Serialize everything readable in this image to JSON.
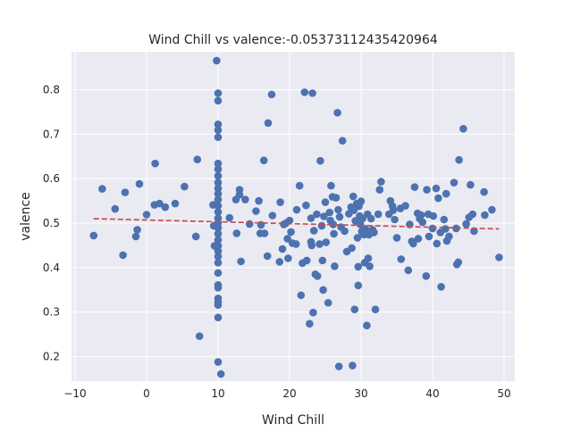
{
  "chart_data": {
    "type": "scatter",
    "title": "Wind Chill vs valence:-0.05373112435420964",
    "xlabel": "Wind Chill",
    "ylabel": "valence",
    "xlim": [
      -10.5,
      51.5
    ],
    "ylim": [
      0.145,
      0.885
    ],
    "xticks": [
      -10,
      0,
      10,
      20,
      30,
      40,
      50
    ],
    "xtick_labels": [
      "−10",
      "0",
      "10",
      "20",
      "30",
      "40",
      "50"
    ],
    "yticks": [
      0.2,
      0.3,
      0.4,
      0.5,
      0.6,
      0.7,
      0.8
    ],
    "ytick_labels": [
      "0.2",
      "0.3",
      "0.4",
      "0.5",
      "0.6",
      "0.7",
      "0.8"
    ],
    "grid": true,
    "series": [
      {
        "kind": "points",
        "color": "#4c72b0",
        "points": [
          [
            -7.4,
            0.472
          ],
          [
            -6.2,
            0.577
          ],
          [
            -4.4,
            0.532
          ],
          [
            -3.3,
            0.428
          ],
          [
            -3.0,
            0.569
          ],
          [
            -1.5,
            0.47
          ],
          [
            -1.3,
            0.485
          ],
          [
            -1.0,
            0.588
          ],
          [
            0.0,
            0.519
          ],
          [
            1.1,
            0.541
          ],
          [
            1.2,
            0.634
          ],
          [
            1.8,
            0.544
          ],
          [
            2.6,
            0.536
          ],
          [
            4.0,
            0.544
          ],
          [
            5.3,
            0.582
          ],
          [
            6.9,
            0.47
          ],
          [
            7.1,
            0.643
          ],
          [
            7.4,
            0.246
          ],
          [
            9.3,
            0.541
          ],
          [
            9.4,
            0.494
          ],
          [
            9.5,
            0.449
          ],
          [
            9.8,
            0.865
          ],
          [
            10.0,
            0.792
          ],
          [
            10.0,
            0.775
          ],
          [
            10.0,
            0.722
          ],
          [
            10.0,
            0.709
          ],
          [
            10.0,
            0.693
          ],
          [
            10.0,
            0.634
          ],
          [
            10.0,
            0.621
          ],
          [
            10.0,
            0.606
          ],
          [
            10.0,
            0.591
          ],
          [
            10.0,
            0.578
          ],
          [
            10.0,
            0.566
          ],
          [
            10.0,
            0.553
          ],
          [
            10.0,
            0.539
          ],
          [
            10.0,
            0.525
          ],
          [
            10.0,
            0.511
          ],
          [
            10.0,
            0.5
          ],
          [
            10.0,
            0.489
          ],
          [
            10.0,
            0.476
          ],
          [
            10.0,
            0.462
          ],
          [
            10.0,
            0.449
          ],
          [
            10.0,
            0.437
          ],
          [
            10.0,
            0.425
          ],
          [
            10.0,
            0.411
          ],
          [
            10.0,
            0.388
          ],
          [
            10.0,
            0.361
          ],
          [
            10.0,
            0.355
          ],
          [
            10.0,
            0.331
          ],
          [
            10.0,
            0.323
          ],
          [
            10.0,
            0.316
          ],
          [
            10.0,
            0.288
          ],
          [
            10.0,
            0.188
          ],
          [
            10.4,
            0.161
          ],
          [
            11.6,
            0.512
          ],
          [
            12.5,
            0.553
          ],
          [
            12.6,
            0.477
          ],
          [
            13.0,
            0.575
          ],
          [
            13.0,
            0.564
          ],
          [
            13.2,
            0.414
          ],
          [
            13.8,
            0.553
          ],
          [
            14.4,
            0.498
          ],
          [
            15.3,
            0.527
          ],
          [
            15.7,
            0.55
          ],
          [
            15.9,
            0.477
          ],
          [
            16.0,
            0.496
          ],
          [
            16.4,
            0.641
          ],
          [
            16.5,
            0.477
          ],
          [
            16.9,
            0.426
          ],
          [
            17.0,
            0.725
          ],
          [
            17.5,
            0.789
          ],
          [
            17.6,
            0.517
          ],
          [
            18.6,
            0.413
          ],
          [
            18.7,
            0.547
          ],
          [
            19.0,
            0.442
          ],
          [
            19.2,
            0.497
          ],
          [
            19.5,
            0.5
          ],
          [
            19.7,
            0.465
          ],
          [
            19.8,
            0.421
          ],
          [
            20.0,
            0.506
          ],
          [
            20.2,
            0.48
          ],
          [
            20.4,
            0.455
          ],
          [
            20.9,
            0.453
          ],
          [
            21.0,
            0.53
          ],
          [
            21.4,
            0.584
          ],
          [
            21.6,
            0.338
          ],
          [
            21.8,
            0.41
          ],
          [
            22.1,
            0.794
          ],
          [
            22.3,
            0.54
          ],
          [
            22.4,
            0.416
          ],
          [
            22.8,
            0.274
          ],
          [
            23.0,
            0.511
          ],
          [
            23.0,
            0.458
          ],
          [
            23.1,
            0.45
          ],
          [
            23.2,
            0.792
          ],
          [
            23.3,
            0.299
          ],
          [
            23.4,
            0.483
          ],
          [
            23.6,
            0.385
          ],
          [
            23.8,
            0.52
          ],
          [
            23.9,
            0.381
          ],
          [
            24.2,
            0.453
          ],
          [
            24.3,
            0.64
          ],
          [
            24.5,
            0.494
          ],
          [
            24.6,
            0.416
          ],
          [
            24.7,
            0.35
          ],
          [
            24.8,
            0.515
          ],
          [
            25.0,
            0.547
          ],
          [
            25.1,
            0.457
          ],
          [
            25.4,
            0.321
          ],
          [
            25.6,
            0.524
          ],
          [
            25.7,
            0.506
          ],
          [
            25.8,
            0.584
          ],
          [
            26.0,
            0.559
          ],
          [
            26.1,
            0.497
          ],
          [
            26.2,
            0.476
          ],
          [
            26.3,
            0.403
          ],
          [
            26.5,
            0.557
          ],
          [
            26.7,
            0.748
          ],
          [
            26.8,
            0.53
          ],
          [
            26.9,
            0.178
          ],
          [
            27.0,
            0.514
          ],
          [
            27.2,
            0.491
          ],
          [
            27.4,
            0.685
          ],
          [
            27.7,
            0.482
          ],
          [
            28.0,
            0.436
          ],
          [
            28.3,
            0.521
          ],
          [
            28.6,
            0.536
          ],
          [
            28.7,
            0.444
          ],
          [
            28.8,
            0.18
          ],
          [
            28.9,
            0.56
          ],
          [
            29.0,
            0.529
          ],
          [
            29.1,
            0.306
          ],
          [
            29.2,
            0.505
          ],
          [
            29.4,
            0.544
          ],
          [
            29.5,
            0.467
          ],
          [
            29.6,
            0.402
          ],
          [
            29.6,
            0.36
          ],
          [
            29.7,
            0.538
          ],
          [
            29.8,
            0.516
          ],
          [
            29.9,
            0.497
          ],
          [
            30.0,
            0.549
          ],
          [
            30.1,
            0.481
          ],
          [
            30.2,
            0.51
          ],
          [
            30.4,
            0.474
          ],
          [
            30.5,
            0.411
          ],
          [
            30.6,
            0.487
          ],
          [
            30.8,
            0.27
          ],
          [
            30.9,
            0.52
          ],
          [
            31.0,
            0.421
          ],
          [
            31.1,
            0.474
          ],
          [
            31.2,
            0.403
          ],
          [
            31.4,
            0.51
          ],
          [
            31.6,
            0.485
          ],
          [
            31.8,
            0.479
          ],
          [
            32.0,
            0.306
          ],
          [
            32.4,
            0.52
          ],
          [
            32.6,
            0.575
          ],
          [
            32.8,
            0.593
          ],
          [
            33.9,
            0.52
          ],
          [
            34.1,
            0.55
          ],
          [
            34.4,
            0.538
          ],
          [
            34.5,
            0.529
          ],
          [
            34.7,
            0.508
          ],
          [
            35.0,
            0.467
          ],
          [
            35.5,
            0.533
          ],
          [
            35.6,
            0.419
          ],
          [
            36.2,
            0.539
          ],
          [
            36.6,
            0.394
          ],
          [
            36.8,
            0.497
          ],
          [
            37.1,
            0.459
          ],
          [
            37.3,
            0.454
          ],
          [
            37.5,
            0.581
          ],
          [
            37.9,
            0.522
          ],
          [
            38.0,
            0.465
          ],
          [
            38.2,
            0.51
          ],
          [
            38.4,
            0.518
          ],
          [
            38.6,
            0.502
          ],
          [
            39.1,
            0.381
          ],
          [
            39.2,
            0.575
          ],
          [
            39.4,
            0.52
          ],
          [
            39.5,
            0.47
          ],
          [
            40.0,
            0.488
          ],
          [
            40.1,
            0.516
          ],
          [
            40.5,
            0.578
          ],
          [
            40.6,
            0.454
          ],
          [
            40.8,
            0.556
          ],
          [
            41.1,
            0.479
          ],
          [
            41.2,
            0.357
          ],
          [
            41.6,
            0.508
          ],
          [
            41.8,
            0.487
          ],
          [
            41.9,
            0.566
          ],
          [
            42.0,
            0.46
          ],
          [
            42.3,
            0.47
          ],
          [
            43.0,
            0.591
          ],
          [
            43.3,
            0.488
          ],
          [
            43.4,
            0.407
          ],
          [
            43.6,
            0.412
          ],
          [
            43.7,
            0.642
          ],
          [
            44.3,
            0.712
          ],
          [
            44.7,
            0.498
          ],
          [
            45.1,
            0.513
          ],
          [
            45.3,
            0.586
          ],
          [
            45.6,
            0.52
          ],
          [
            45.8,
            0.482
          ],
          [
            47.2,
            0.57
          ],
          [
            47.3,
            0.518
          ],
          [
            48.3,
            0.53
          ],
          [
            49.3,
            0.423
          ]
        ]
      },
      {
        "kind": "trend",
        "color": "#c44e52",
        "x": [
          -7.4,
          49.3
        ],
        "y": [
          0.51,
          0.487
        ]
      }
    ]
  },
  "style": {
    "plot_bg": "#eaeaf2",
    "grid_color": "#ffffff",
    "point_color": "#4c72b0",
    "trend_color": "#c44e52"
  }
}
